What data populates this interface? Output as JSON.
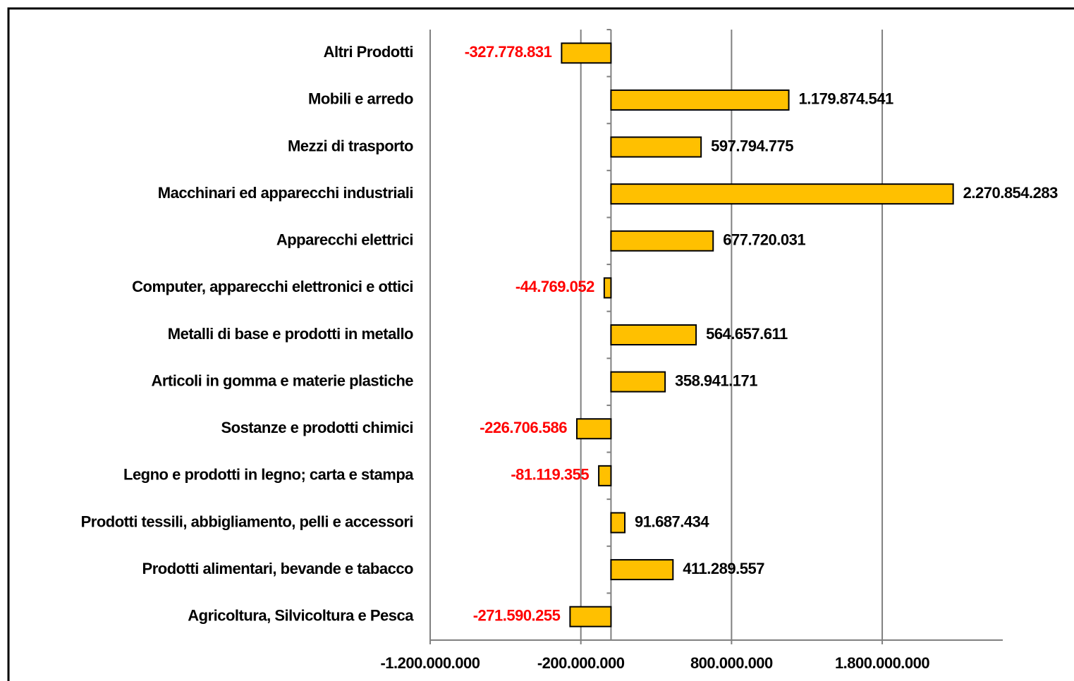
{
  "chart_data": {
    "type": "hbar",
    "categories": [
      "Altri Prodotti",
      "Mobili e arredo",
      "Mezzi di trasporto",
      "Macchinari ed apparecchi industriali",
      "Apparecchi elettrici",
      "Computer, apparecchi elettronici e ottici",
      "Metalli di base e prodotti in metallo",
      "Articoli in gomma e materie plastiche",
      "Sostanze e prodotti chimici",
      "Legno e prodotti in legno; carta e stampa",
      "Prodotti tessili, abbigliamento, pelli e accessori",
      "Prodotti alimentari, bevande e tabacco",
      "Agricoltura, Silvicoltura e Pesca"
    ],
    "values": [
      -327778831,
      1179874541,
      597794775,
      2270854283,
      677720031,
      -44769052,
      564657611,
      358941171,
      -226706586,
      -81119355,
      91687434,
      411289557,
      -271590255
    ],
    "value_labels": [
      "-327.778.831",
      "1.179.874.541",
      "597.794.775",
      "2.270.854.283",
      "677.720.031",
      "-44.769.052",
      "564.657.611",
      "358.941.171",
      "-226.706.586",
      "-81.119.355",
      "91.687.434",
      "411.289.557",
      "-271.590.255"
    ],
    "color": "#ffc000",
    "negative_label_color": "#ff0000",
    "xlim": [
      -1200000000,
      2600000000
    ],
    "xticks": [
      {
        "value": -1200000000,
        "label": "-1.200.000.000"
      },
      {
        "value": -200000000,
        "label": "-200.000.000"
      },
      {
        "value": 800000000,
        "label": "800.000.000"
      },
      {
        "value": 1800000000,
        "label": "1.800.000.000"
      }
    ],
    "grid": true
  }
}
